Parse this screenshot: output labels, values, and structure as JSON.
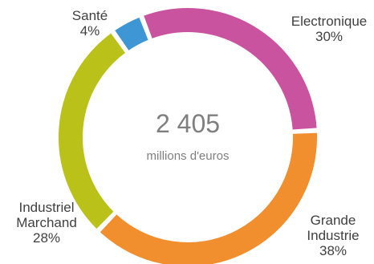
{
  "chart_data": {
    "type": "pie",
    "center": {
      "total": "2 405",
      "unit": "millions d'euros"
    },
    "slices": [
      {
        "name_lines": [
          "Electronique"
        ],
        "value": 30,
        "value_label": "30%",
        "color": "#C9539F"
      },
      {
        "name_lines": [
          "Grande",
          "Industrie"
        ],
        "value": 38,
        "value_label": "38%",
        "color": "#F18E2E"
      },
      {
        "name_lines": [
          "Industriel",
          "Marchand"
        ],
        "value": 28,
        "value_label": "28%",
        "color": "#BAC21A"
      },
      {
        "name_lines": [
          "Santé"
        ],
        "value": 4,
        "value_label": "4%",
        "color": "#3F96D4"
      }
    ]
  }
}
